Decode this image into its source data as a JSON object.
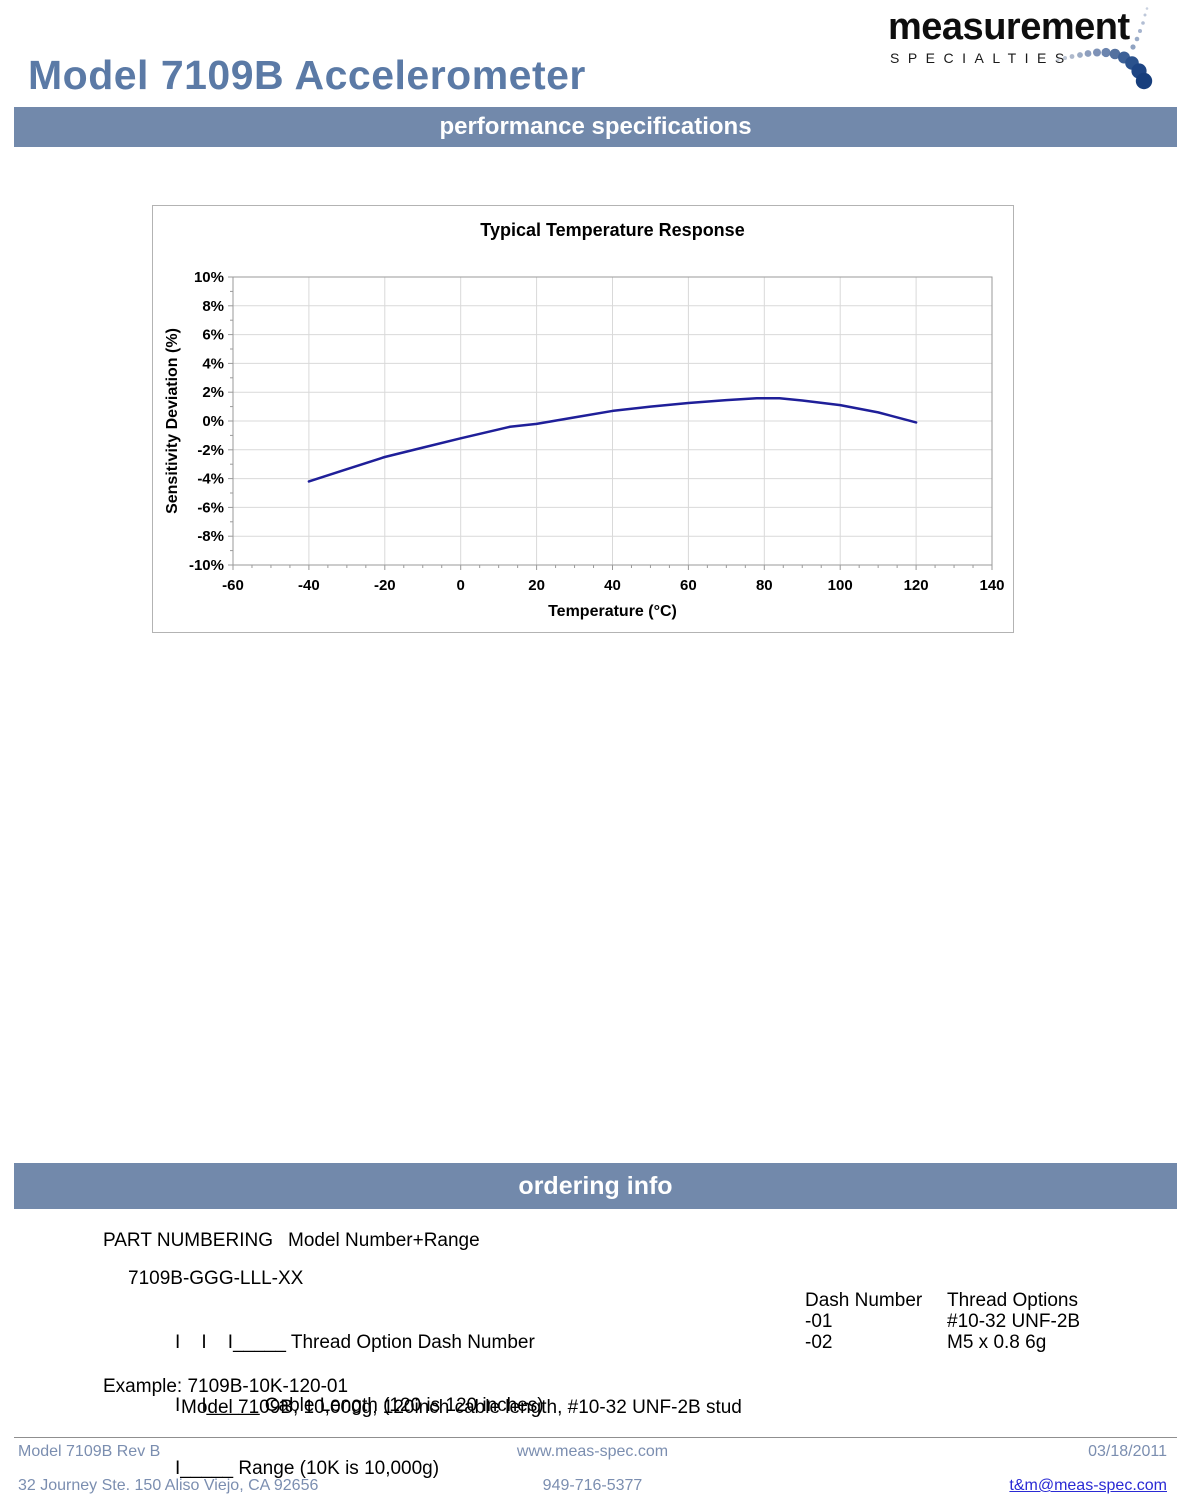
{
  "header": {
    "title": "Model 7109B Accelerometer"
  },
  "logo": {
    "name": "measurement",
    "subtitle": "SPECIALTIES"
  },
  "sections": {
    "performance": "performance specifications",
    "ordering": "ordering info"
  },
  "chart_data": {
    "type": "line",
    "title": "Typical Temperature Response",
    "xlabel": "Temperature (°C)",
    "ylabel": "Sensitivity Deviation (%)",
    "xlim": [
      -60,
      140
    ],
    "ylim": [
      -10,
      10
    ],
    "x_ticks": [
      -60,
      -40,
      -20,
      0,
      20,
      40,
      60,
      80,
      100,
      120,
      140
    ],
    "y_ticks": [
      10,
      8,
      6,
      4,
      2,
      0,
      -2,
      -4,
      -6,
      -8,
      -10
    ],
    "y_tick_suffix": "%",
    "x_minor_step": 5,
    "y_minor_step": 1,
    "grid": true,
    "legend": "none",
    "line_color": "#1f1f99",
    "series": [
      {
        "name": "Typical temperature response",
        "points": [
          [
            -40,
            -4.2
          ],
          [
            -30,
            -3.35
          ],
          [
            -20,
            -2.5
          ],
          [
            -10,
            -1.85
          ],
          [
            0,
            -1.2
          ],
          [
            13,
            -0.4
          ],
          [
            20,
            -0.2
          ],
          [
            30,
            0.25
          ],
          [
            40,
            0.7
          ],
          [
            50,
            1.0
          ],
          [
            60,
            1.25
          ],
          [
            70,
            1.45
          ],
          [
            78,
            1.58
          ],
          [
            84,
            1.58
          ],
          [
            90,
            1.42
          ],
          [
            100,
            1.1
          ],
          [
            110,
            0.6
          ],
          [
            120,
            -0.1
          ]
        ]
      }
    ]
  },
  "ordering": {
    "part_numbering_label": "PART NUMBERING",
    "part_numbering_value": "Model Number+Range",
    "part_code": "7109B-GGG-LLL-XX",
    "diagram_lines": [
      "I    I    I_____ Thread Option Dash Number",
      "I    I_____ Cable Length (120 is 120 inches)",
      "I_____ Range (10K is 10,000g)"
    ],
    "thread_table": {
      "headers": [
        "Dash Number",
        "Thread Options"
      ],
      "rows": [
        [
          "-01",
          "#10-32 UNF-2B"
        ],
        [
          "-02",
          "M5 x 0.8 6g"
        ]
      ]
    },
    "example_line": "Example: 7109B-10K-120-01",
    "example_desc": "Model 7109B, 10,000g, 120inch cable length, #10-32 UNF-2B stud"
  },
  "footer": {
    "doc_ref": "Model 7109B Rev B",
    "website": "www.meas-spec.com",
    "date": "03/18/2011",
    "address": "32 Journey Ste. 150 Aliso Viejo, CA 92656",
    "phone": "949-716-5377",
    "email": "t&m@meas-spec.com"
  },
  "colors": {
    "title_blue": "#5b7aa6",
    "banner_bg": "#7289ab",
    "footer_text": "#7b8eb0",
    "link_blue": "#2a2ad4",
    "curve_navy": "#1f1f99",
    "gridline": "#d9d9d9",
    "axis": "#9a9a9a"
  }
}
